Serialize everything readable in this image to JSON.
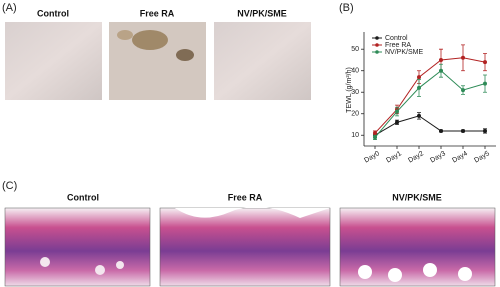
{
  "panel_a": {
    "label": "(A)",
    "images": [
      "Control",
      "Free RA",
      "NV/PK/SME"
    ]
  },
  "chart_data": {
    "type": "line",
    "label": "(B)",
    "y_label": "TEWL (g/m²/h)",
    "categories": [
      "Day0",
      "Day1",
      "Day2",
      "Day3",
      "Day4",
      "Day5"
    ],
    "series": [
      {
        "name": "Control",
        "color": "#1a1a1a",
        "values": [
          10,
          16,
          19,
          12,
          12,
          12
        ],
        "errors": [
          1,
          1,
          1.5,
          0.5,
          0.5,
          1
        ]
      },
      {
        "name": "Free RA",
        "color": "#b22222",
        "values": [
          11,
          22,
          37,
          45,
          46,
          44
        ],
        "errors": [
          1,
          2,
          3,
          5,
          6,
          4
        ]
      },
      {
        "name": "NV/PK/SME",
        "color": "#2e8b57",
        "values": [
          9,
          21,
          32,
          40,
          31,
          34
        ],
        "errors": [
          1,
          2,
          4,
          3,
          2,
          4
        ]
      }
    ],
    "ylim": [
      5,
      58
    ],
    "yticks": [
      10,
      20,
      30,
      40,
      50
    ],
    "legend": "upper-left"
  },
  "panel_c": {
    "label": "(C)",
    "images": [
      "Control",
      "Free RA",
      "NV/PK/SME"
    ]
  }
}
